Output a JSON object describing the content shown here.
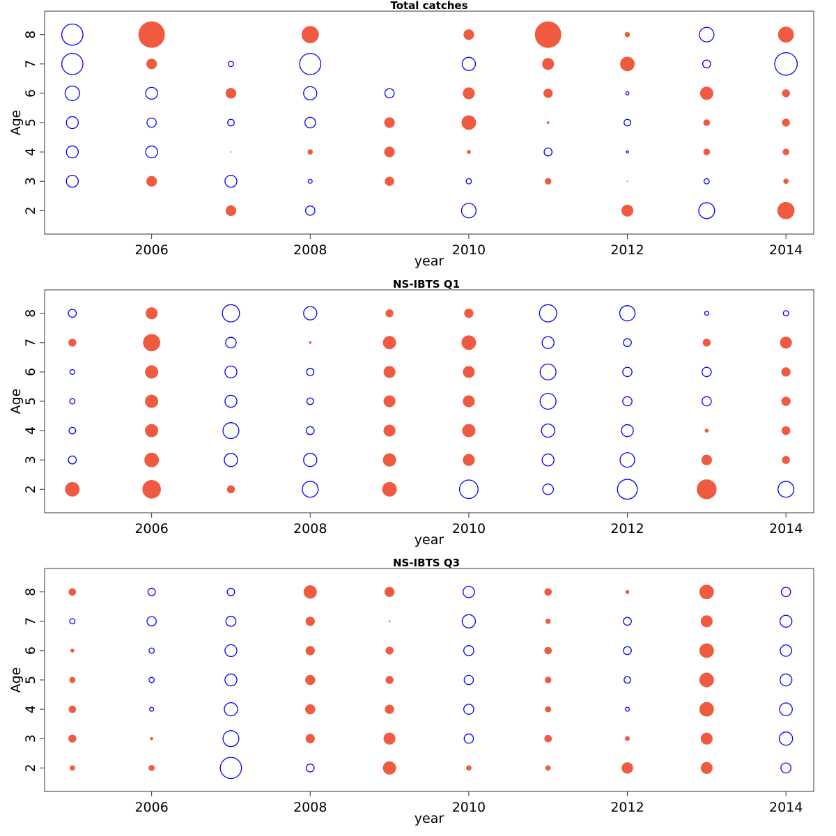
{
  "figure": {
    "colors": {
      "positive": "#f05a41",
      "negative": "#0000ff",
      "axis": "#333333"
    }
  },
  "chart_data": [
    {
      "type": "scatter",
      "subtype": "bubble",
      "title": "Total catches",
      "xlabel": "year",
      "ylabel": "Age",
      "xlim": [
        2004.65,
        2014.35
      ],
      "ylim": [
        1.2,
        8.8
      ],
      "xticks": [
        "2006",
        "2008",
        "2010",
        "2012",
        "2014"
      ],
      "yticks": [
        "2",
        "3",
        "4",
        "5",
        "6",
        "7",
        "8"
      ],
      "legend": "none",
      "note_sign": "filled red = positive residual, open blue = negative residual; value = bubble radius relative to max (1.0)",
      "points": [
        {
          "x": 2005,
          "y": 3,
          "v": -0.45
        },
        {
          "x": 2005,
          "y": 4,
          "v": -0.45
        },
        {
          "x": 2005,
          "y": 5,
          "v": -0.45
        },
        {
          "x": 2005,
          "y": 6,
          "v": -0.55
        },
        {
          "x": 2005,
          "y": 7,
          "v": -0.8
        },
        {
          "x": 2005,
          "y": 8,
          "v": -0.8
        },
        {
          "x": 2006,
          "y": 3,
          "v": 0.4
        },
        {
          "x": 2006,
          "y": 4,
          "v": -0.45
        },
        {
          "x": 2006,
          "y": 5,
          "v": -0.35
        },
        {
          "x": 2006,
          "y": 6,
          "v": -0.45
        },
        {
          "x": 2006,
          "y": 7,
          "v": 0.4
        },
        {
          "x": 2006,
          "y": 8,
          "v": 1.0
        },
        {
          "x": 2007,
          "y": 2,
          "v": 0.4
        },
        {
          "x": 2007,
          "y": 3,
          "v": -0.45
        },
        {
          "x": 2007,
          "y": 4,
          "v": 0.05
        },
        {
          "x": 2007,
          "y": 5,
          "v": -0.25
        },
        {
          "x": 2007,
          "y": 6,
          "v": 0.4
        },
        {
          "x": 2007,
          "y": 7,
          "v": -0.2
        },
        {
          "x": 2008,
          "y": 2,
          "v": -0.35
        },
        {
          "x": 2008,
          "y": 3,
          "v": -0.15
        },
        {
          "x": 2008,
          "y": 4,
          "v": 0.2
        },
        {
          "x": 2008,
          "y": 5,
          "v": -0.4
        },
        {
          "x": 2008,
          "y": 6,
          "v": -0.5
        },
        {
          "x": 2008,
          "y": 7,
          "v": -0.8
        },
        {
          "x": 2008,
          "y": 8,
          "v": 0.65
        },
        {
          "x": 2009,
          "y": 3,
          "v": 0.35
        },
        {
          "x": 2009,
          "y": 4,
          "v": 0.4
        },
        {
          "x": 2009,
          "y": 5,
          "v": 0.4
        },
        {
          "x": 2009,
          "y": 6,
          "v": -0.35
        },
        {
          "x": 2010,
          "y": 2,
          "v": -0.55
        },
        {
          "x": 2010,
          "y": 3,
          "v": -0.2
        },
        {
          "x": 2010,
          "y": 4,
          "v": 0.15
        },
        {
          "x": 2010,
          "y": 5,
          "v": 0.55
        },
        {
          "x": 2010,
          "y": 6,
          "v": 0.45
        },
        {
          "x": 2010,
          "y": 7,
          "v": -0.5
        },
        {
          "x": 2010,
          "y": 8,
          "v": 0.4
        },
        {
          "x": 2011,
          "y": 3,
          "v": 0.25
        },
        {
          "x": 2011,
          "y": 4,
          "v": -0.3
        },
        {
          "x": 2011,
          "y": 5,
          "v": 0.1
        },
        {
          "x": 2011,
          "y": 6,
          "v": 0.35
        },
        {
          "x": 2011,
          "y": 7,
          "v": 0.45
        },
        {
          "x": 2011,
          "y": 8,
          "v": 1.0
        },
        {
          "x": 2012,
          "y": 2,
          "v": 0.45
        },
        {
          "x": 2012,
          "y": 3,
          "v": 0.05
        },
        {
          "x": 2012,
          "y": 4,
          "v": -0.08
        },
        {
          "x": 2012,
          "y": 5,
          "v": -0.25
        },
        {
          "x": 2012,
          "y": 6,
          "v": -0.12
        },
        {
          "x": 2012,
          "y": 7,
          "v": 0.55
        },
        {
          "x": 2012,
          "y": 8,
          "v": 0.2
        },
        {
          "x": 2013,
          "y": 2,
          "v": -0.6
        },
        {
          "x": 2013,
          "y": 3,
          "v": -0.2
        },
        {
          "x": 2013,
          "y": 4,
          "v": 0.25
        },
        {
          "x": 2013,
          "y": 5,
          "v": 0.25
        },
        {
          "x": 2013,
          "y": 6,
          "v": 0.5
        },
        {
          "x": 2013,
          "y": 7,
          "v": -0.3
        },
        {
          "x": 2013,
          "y": 8,
          "v": -0.55
        },
        {
          "x": 2014,
          "y": 2,
          "v": 0.65
        },
        {
          "x": 2014,
          "y": 3,
          "v": 0.2
        },
        {
          "x": 2014,
          "y": 4,
          "v": 0.25
        },
        {
          "x": 2014,
          "y": 5,
          "v": 0.3
        },
        {
          "x": 2014,
          "y": 6,
          "v": 0.3
        },
        {
          "x": 2014,
          "y": 7,
          "v": -0.85
        },
        {
          "x": 2014,
          "y": 8,
          "v": 0.6
        }
      ]
    },
    {
      "type": "scatter",
      "subtype": "bubble",
      "title": "NS-IBTS Q1",
      "xlabel": "year",
      "ylabel": "Age",
      "xlim": [
        2004.65,
        2014.35
      ],
      "ylim": [
        1.2,
        8.8
      ],
      "xticks": [
        "2006",
        "2008",
        "2010",
        "2012",
        "2014"
      ],
      "yticks": [
        "2",
        "3",
        "4",
        "5",
        "6",
        "7",
        "8"
      ],
      "legend": "none",
      "points": [
        {
          "x": 2005,
          "y": 2,
          "v": 0.55
        },
        {
          "x": 2005,
          "y": 3,
          "v": -0.3
        },
        {
          "x": 2005,
          "y": 4,
          "v": -0.25
        },
        {
          "x": 2005,
          "y": 5,
          "v": -0.2
        },
        {
          "x": 2005,
          "y": 6,
          "v": -0.18
        },
        {
          "x": 2005,
          "y": 7,
          "v": 0.3
        },
        {
          "x": 2005,
          "y": 8,
          "v": -0.3
        },
        {
          "x": 2006,
          "y": 2,
          "v": 0.7
        },
        {
          "x": 2006,
          "y": 3,
          "v": 0.55
        },
        {
          "x": 2006,
          "y": 4,
          "v": 0.5
        },
        {
          "x": 2006,
          "y": 5,
          "v": 0.5
        },
        {
          "x": 2006,
          "y": 6,
          "v": 0.5
        },
        {
          "x": 2006,
          "y": 7,
          "v": 0.65
        },
        {
          "x": 2006,
          "y": 8,
          "v": 0.45
        },
        {
          "x": 2007,
          "y": 2,
          "v": 0.3
        },
        {
          "x": 2007,
          "y": 3,
          "v": -0.5
        },
        {
          "x": 2007,
          "y": 4,
          "v": -0.6
        },
        {
          "x": 2007,
          "y": 5,
          "v": -0.45
        },
        {
          "x": 2007,
          "y": 6,
          "v": -0.45
        },
        {
          "x": 2007,
          "y": 7,
          "v": -0.4
        },
        {
          "x": 2007,
          "y": 8,
          "v": -0.65
        },
        {
          "x": 2008,
          "y": 2,
          "v": -0.6
        },
        {
          "x": 2008,
          "y": 3,
          "v": -0.5
        },
        {
          "x": 2008,
          "y": 4,
          "v": -0.3
        },
        {
          "x": 2008,
          "y": 5,
          "v": -0.25
        },
        {
          "x": 2008,
          "y": 6,
          "v": -0.28
        },
        {
          "x": 2008,
          "y": 7,
          "v": 0.1
        },
        {
          "x": 2008,
          "y": 8,
          "v": -0.5
        },
        {
          "x": 2009,
          "y": 2,
          "v": 0.55
        },
        {
          "x": 2009,
          "y": 3,
          "v": 0.5
        },
        {
          "x": 2009,
          "y": 4,
          "v": 0.45
        },
        {
          "x": 2009,
          "y": 5,
          "v": 0.45
        },
        {
          "x": 2009,
          "y": 6,
          "v": 0.45
        },
        {
          "x": 2009,
          "y": 7,
          "v": 0.5
        },
        {
          "x": 2009,
          "y": 8,
          "v": 0.3
        },
        {
          "x": 2010,
          "y": 2,
          "v": -0.7
        },
        {
          "x": 2010,
          "y": 3,
          "v": 0.45
        },
        {
          "x": 2010,
          "y": 4,
          "v": 0.5
        },
        {
          "x": 2010,
          "y": 5,
          "v": 0.45
        },
        {
          "x": 2010,
          "y": 6,
          "v": 0.45
        },
        {
          "x": 2010,
          "y": 7,
          "v": 0.55
        },
        {
          "x": 2010,
          "y": 8,
          "v": 0.35
        },
        {
          "x": 2011,
          "y": 2,
          "v": -0.4
        },
        {
          "x": 2011,
          "y": 3,
          "v": -0.45
        },
        {
          "x": 2011,
          "y": 4,
          "v": -0.5
        },
        {
          "x": 2011,
          "y": 5,
          "v": -0.6
        },
        {
          "x": 2011,
          "y": 6,
          "v": -0.6
        },
        {
          "x": 2011,
          "y": 7,
          "v": -0.45
        },
        {
          "x": 2011,
          "y": 8,
          "v": -0.65
        },
        {
          "x": 2012,
          "y": 2,
          "v": -0.75
        },
        {
          "x": 2012,
          "y": 3,
          "v": -0.55
        },
        {
          "x": 2012,
          "y": 4,
          "v": -0.45
        },
        {
          "x": 2012,
          "y": 5,
          "v": -0.35
        },
        {
          "x": 2012,
          "y": 6,
          "v": -0.35
        },
        {
          "x": 2012,
          "y": 7,
          "v": -0.3
        },
        {
          "x": 2012,
          "y": 8,
          "v": -0.58
        },
        {
          "x": 2013,
          "y": 2,
          "v": 0.75
        },
        {
          "x": 2013,
          "y": 3,
          "v": 0.4
        },
        {
          "x": 2013,
          "y": 4,
          "v": 0.15
        },
        {
          "x": 2013,
          "y": 5,
          "v": -0.35
        },
        {
          "x": 2013,
          "y": 6,
          "v": -0.35
        },
        {
          "x": 2013,
          "y": 7,
          "v": 0.3
        },
        {
          "x": 2013,
          "y": 8,
          "v": -0.15
        },
        {
          "x": 2014,
          "y": 2,
          "v": -0.6
        },
        {
          "x": 2014,
          "y": 3,
          "v": 0.3
        },
        {
          "x": 2014,
          "y": 4,
          "v": 0.33
        },
        {
          "x": 2014,
          "y": 5,
          "v": 0.35
        },
        {
          "x": 2014,
          "y": 6,
          "v": 0.35
        },
        {
          "x": 2014,
          "y": 7,
          "v": 0.45
        },
        {
          "x": 2014,
          "y": 8,
          "v": -0.2
        }
      ]
    },
    {
      "type": "scatter",
      "subtype": "bubble",
      "title": "NS-IBTS Q3",
      "xlabel": "year",
      "ylabel": "Age",
      "xlim": [
        2004.65,
        2014.35
      ],
      "ylim": [
        1.2,
        8.8
      ],
      "xticks": [
        "2006",
        "2008",
        "2010",
        "2012",
        "2014"
      ],
      "yticks": [
        "2",
        "3",
        "4",
        "5",
        "6",
        "7",
        "8"
      ],
      "legend": "none",
      "points": [
        {
          "x": 2005,
          "y": 2,
          "v": 0.2
        },
        {
          "x": 2005,
          "y": 3,
          "v": 0.3
        },
        {
          "x": 2005,
          "y": 4,
          "v": 0.28
        },
        {
          "x": 2005,
          "y": 5,
          "v": 0.23
        },
        {
          "x": 2005,
          "y": 6,
          "v": 0.15
        },
        {
          "x": 2005,
          "y": 7,
          "v": -0.2
        },
        {
          "x": 2005,
          "y": 8,
          "v": 0.28
        },
        {
          "x": 2006,
          "y": 2,
          "v": 0.23
        },
        {
          "x": 2006,
          "y": 3,
          "v": 0.12
        },
        {
          "x": 2006,
          "y": 4,
          "v": -0.15
        },
        {
          "x": 2006,
          "y": 5,
          "v": -0.2
        },
        {
          "x": 2006,
          "y": 6,
          "v": -0.2
        },
        {
          "x": 2006,
          "y": 7,
          "v": -0.35
        },
        {
          "x": 2006,
          "y": 8,
          "v": -0.28
        },
        {
          "x": 2007,
          "y": 2,
          "v": -0.8
        },
        {
          "x": 2007,
          "y": 3,
          "v": -0.6
        },
        {
          "x": 2007,
          "y": 4,
          "v": -0.5
        },
        {
          "x": 2007,
          "y": 5,
          "v": -0.45
        },
        {
          "x": 2007,
          "y": 6,
          "v": -0.45
        },
        {
          "x": 2007,
          "y": 7,
          "v": -0.38
        },
        {
          "x": 2007,
          "y": 8,
          "v": -0.28
        },
        {
          "x": 2008,
          "y": 2,
          "v": -0.3
        },
        {
          "x": 2008,
          "y": 3,
          "v": 0.35
        },
        {
          "x": 2008,
          "y": 4,
          "v": 0.38
        },
        {
          "x": 2008,
          "y": 5,
          "v": 0.38
        },
        {
          "x": 2008,
          "y": 6,
          "v": 0.35
        },
        {
          "x": 2008,
          "y": 7,
          "v": 0.35
        },
        {
          "x": 2008,
          "y": 8,
          "v": 0.5
        },
        {
          "x": 2009,
          "y": 2,
          "v": 0.5
        },
        {
          "x": 2009,
          "y": 3,
          "v": 0.45
        },
        {
          "x": 2009,
          "y": 4,
          "v": 0.35
        },
        {
          "x": 2009,
          "y": 5,
          "v": 0.3
        },
        {
          "x": 2009,
          "y": 6,
          "v": 0.3
        },
        {
          "x": 2009,
          "y": 7,
          "v": 0.07
        },
        {
          "x": 2009,
          "y": 8,
          "v": 0.38
        },
        {
          "x": 2010,
          "y": 2,
          "v": 0.2
        },
        {
          "x": 2010,
          "y": 3,
          "v": -0.35
        },
        {
          "x": 2010,
          "y": 4,
          "v": -0.38
        },
        {
          "x": 2010,
          "y": 5,
          "v": -0.35
        },
        {
          "x": 2010,
          "y": 6,
          "v": -0.38
        },
        {
          "x": 2010,
          "y": 7,
          "v": -0.5
        },
        {
          "x": 2010,
          "y": 8,
          "v": -0.43
        },
        {
          "x": 2011,
          "y": 2,
          "v": 0.2
        },
        {
          "x": 2011,
          "y": 3,
          "v": 0.28
        },
        {
          "x": 2011,
          "y": 4,
          "v": 0.23
        },
        {
          "x": 2011,
          "y": 5,
          "v": 0.25
        },
        {
          "x": 2011,
          "y": 6,
          "v": 0.28
        },
        {
          "x": 2011,
          "y": 7,
          "v": 0.2
        },
        {
          "x": 2011,
          "y": 8,
          "v": 0.28
        },
        {
          "x": 2012,
          "y": 2,
          "v": 0.43
        },
        {
          "x": 2012,
          "y": 3,
          "v": 0.18
        },
        {
          "x": 2012,
          "y": 4,
          "v": -0.15
        },
        {
          "x": 2012,
          "y": 5,
          "v": -0.25
        },
        {
          "x": 2012,
          "y": 6,
          "v": -0.3
        },
        {
          "x": 2012,
          "y": 7,
          "v": -0.3
        },
        {
          "x": 2012,
          "y": 8,
          "v": 0.15
        },
        {
          "x": 2013,
          "y": 2,
          "v": 0.45
        },
        {
          "x": 2013,
          "y": 3,
          "v": 0.45
        },
        {
          "x": 2013,
          "y": 4,
          "v": 0.55
        },
        {
          "x": 2013,
          "y": 5,
          "v": 0.55
        },
        {
          "x": 2013,
          "y": 6,
          "v": 0.55
        },
        {
          "x": 2013,
          "y": 7,
          "v": 0.45
        },
        {
          "x": 2013,
          "y": 8,
          "v": 0.55
        },
        {
          "x": 2014,
          "y": 2,
          "v": -0.38
        },
        {
          "x": 2014,
          "y": 3,
          "v": -0.5
        },
        {
          "x": 2014,
          "y": 4,
          "v": -0.48
        },
        {
          "x": 2014,
          "y": 5,
          "v": -0.45
        },
        {
          "x": 2014,
          "y": 6,
          "v": -0.43
        },
        {
          "x": 2014,
          "y": 7,
          "v": -0.45
        },
        {
          "x": 2014,
          "y": 8,
          "v": -0.35
        }
      ]
    }
  ]
}
